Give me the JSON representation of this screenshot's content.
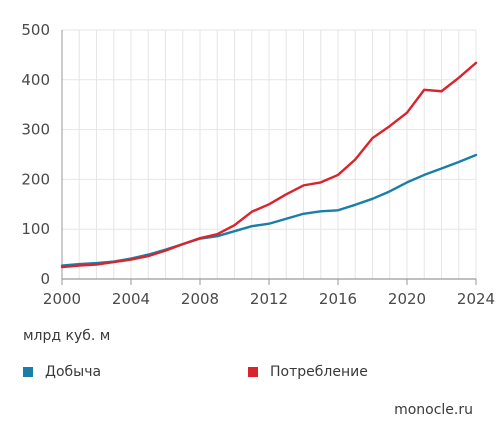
{
  "chart_data": {
    "type": "line",
    "title": "",
    "xlabel": "",
    "ylabel": "млрд куб. м",
    "xlim": [
      2000,
      2024
    ],
    "ylim": [
      0,
      500
    ],
    "x_ticks": [
      2000,
      2004,
      2008,
      2012,
      2016,
      2020,
      2024
    ],
    "y_ticks": [
      0,
      100,
      200,
      300,
      400,
      500
    ],
    "grid": true,
    "legend_position": "bottom",
    "x": [
      2000,
      2001,
      2002,
      2003,
      2004,
      2005,
      2006,
      2007,
      2008,
      2009,
      2010,
      2011,
      2012,
      2013,
      2014,
      2015,
      2016,
      2017,
      2018,
      2019,
      2020,
      2021,
      2022,
      2023,
      2024
    ],
    "series": [
      {
        "name": "Добыча",
        "color": "#1a7fa8",
        "values": [
          27,
          30,
          32,
          35,
          41,
          49,
          59,
          70,
          81,
          86,
          96,
          106,
          111,
          121,
          131,
          136,
          138,
          149,
          161,
          176,
          194,
          209,
          222,
          235,
          249
        ]
      },
      {
        "name": "Потребление",
        "color": "#d9232d",
        "values": [
          24,
          27,
          29,
          34,
          39,
          46,
          57,
          70,
          82,
          90,
          108,
          135,
          150,
          170,
          188,
          194,
          209,
          240,
          283,
          307,
          334,
          380,
          377,
          404,
          434
        ]
      }
    ]
  },
  "source": "monocle.ru"
}
